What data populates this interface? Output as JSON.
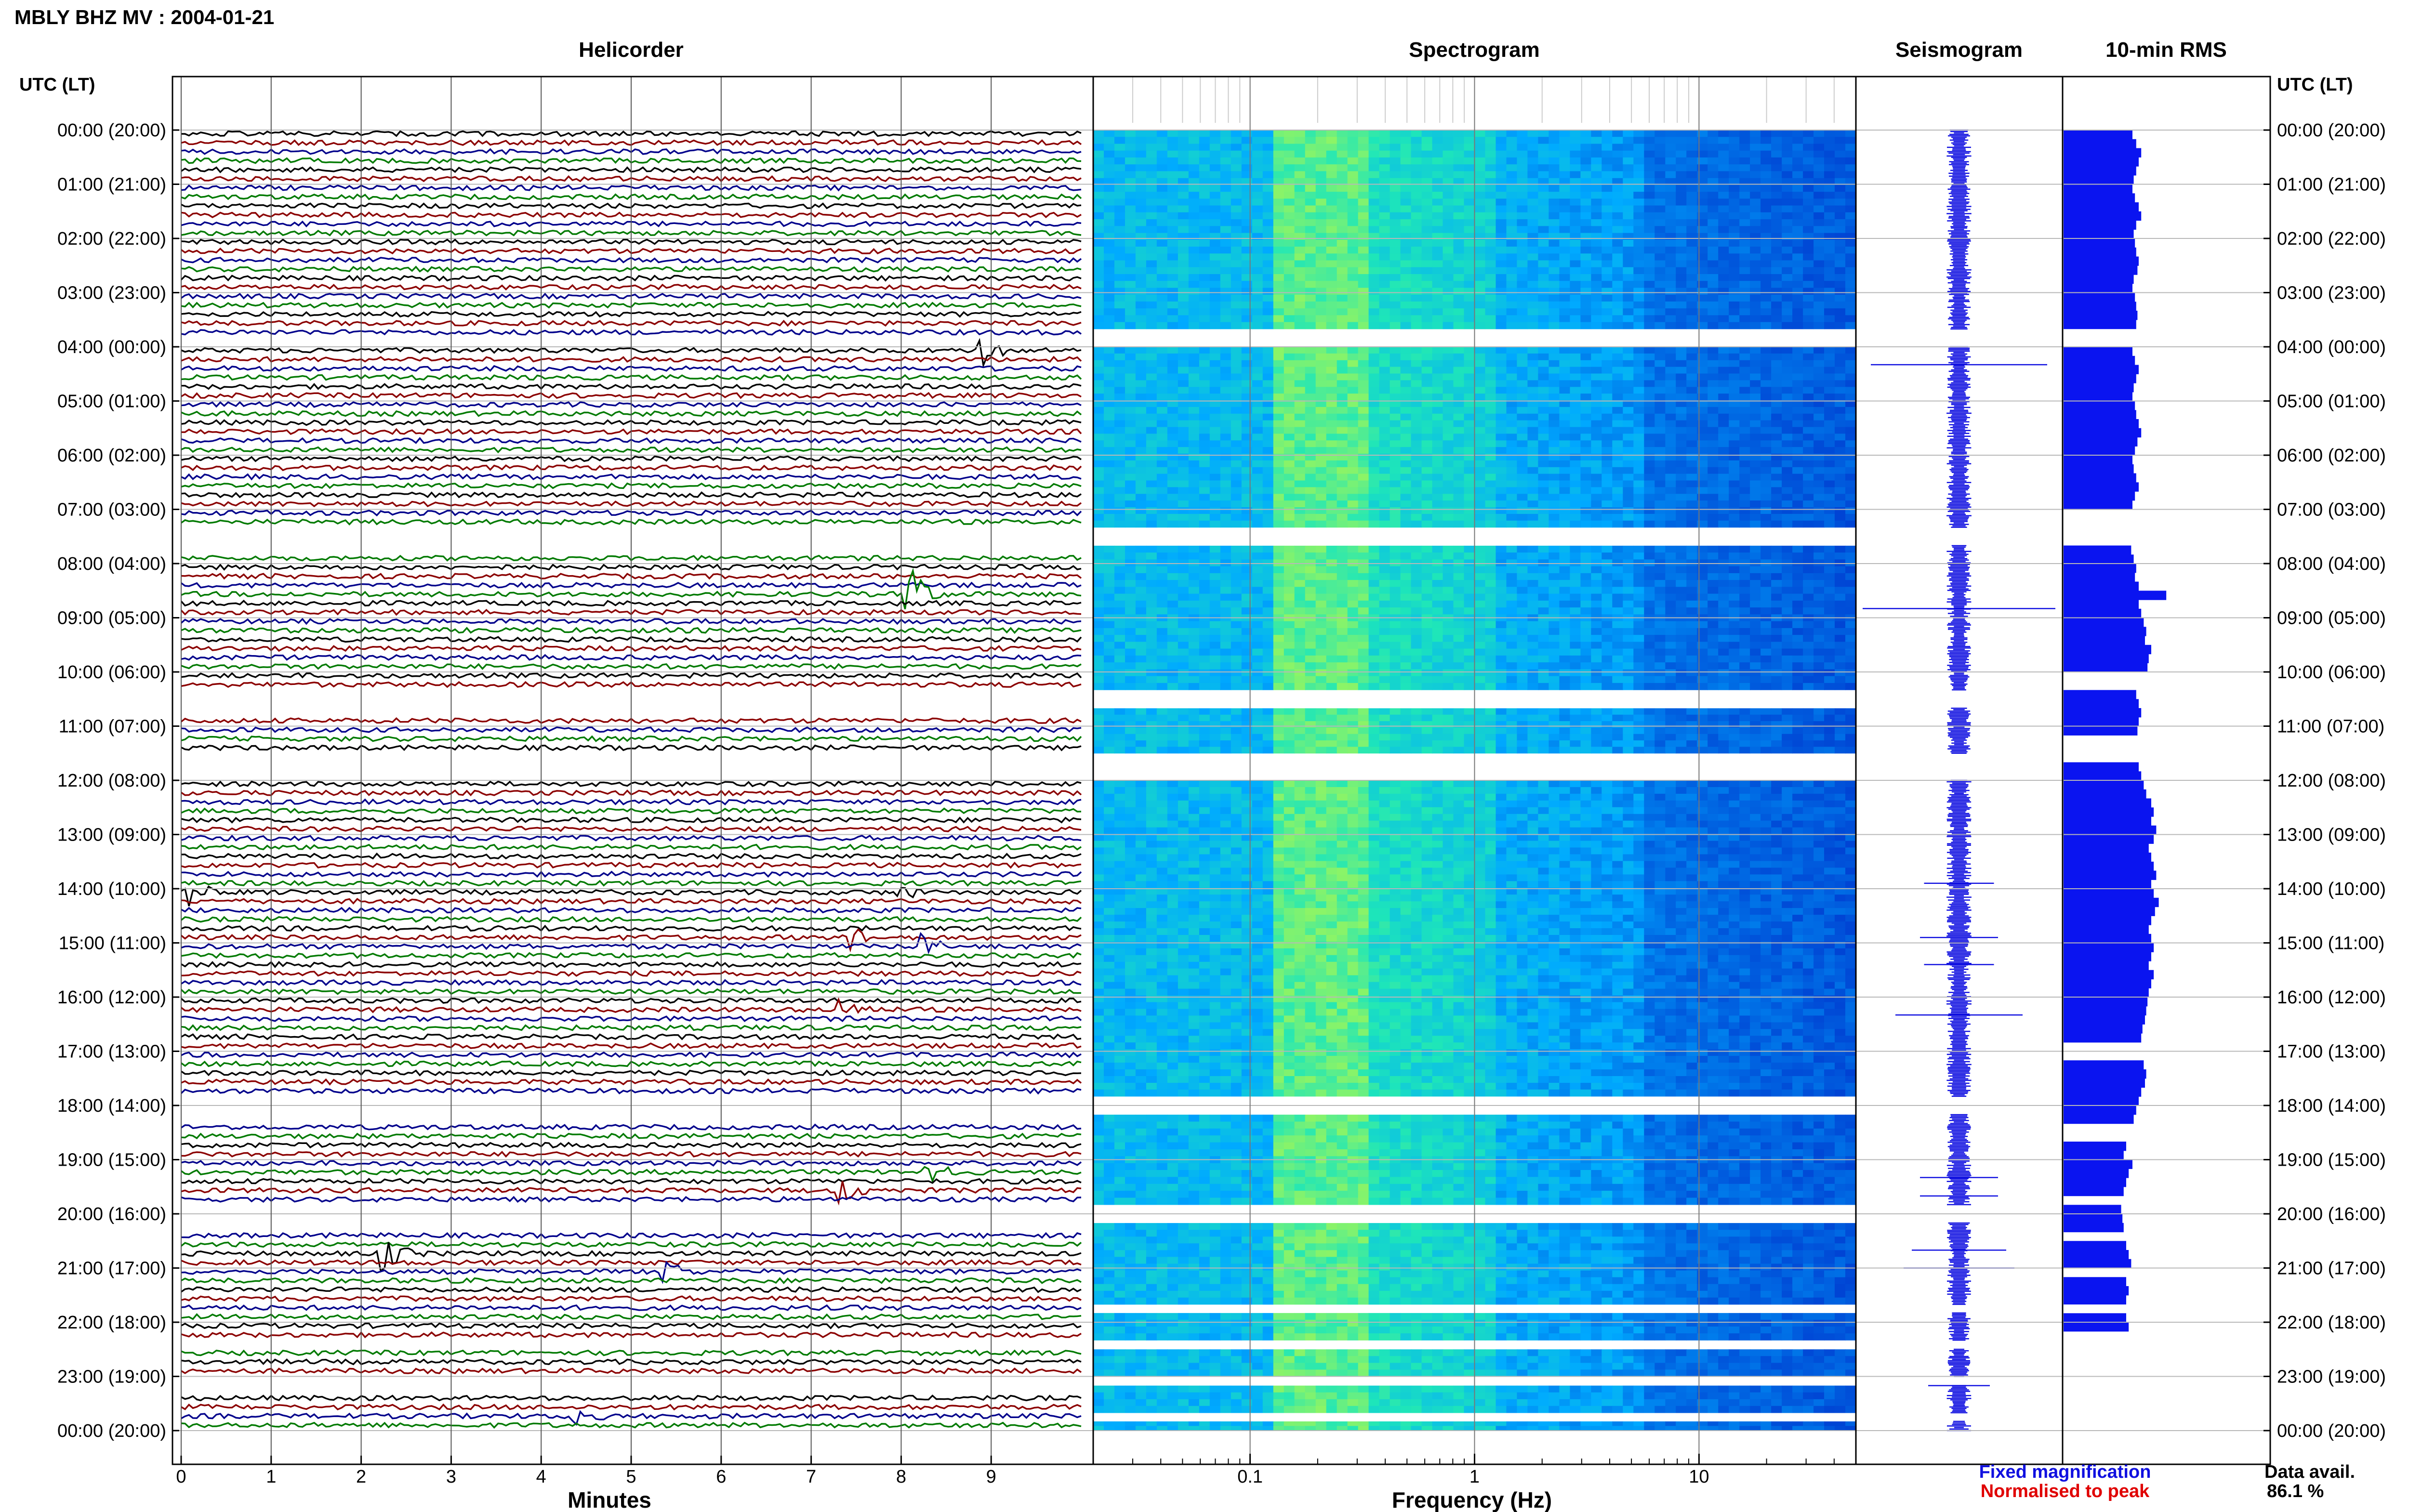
{
  "header": {
    "title": "MBLY BHZ MV : 2004-01-21",
    "utc_label_left": "UTC (LT)",
    "utc_label_right": "UTC (LT)"
  },
  "panels": {
    "helicorder": "Helicorder",
    "spectrogram": "Spectrogram",
    "seismogram": "Seismogram",
    "rms": "10-min RMS"
  },
  "footer": {
    "fixed_magnification": "Fixed magnification",
    "normalised_to_peak": "Normalised to peak",
    "data_avail_label": "Data avail.",
    "data_avail_value": "86.1 %"
  },
  "colors": {
    "helicorder_traces": [
      "#000000",
      "#8b0000",
      "#00008b",
      "#007a00"
    ],
    "seismogram": "#1010e0",
    "rms": "#0a14f0",
    "legend_blue": "#1010e0",
    "legend_red": "#e00000"
  },
  "chart_data": {
    "type": "helicorder-spectrogram",
    "hour_labels": [
      "00:00 (20:00)",
      "01:00 (21:00)",
      "02:00 (22:00)",
      "03:00 (23:00)",
      "04:00 (00:00)",
      "05:00 (01:00)",
      "06:00 (02:00)",
      "07:00 (03:00)",
      "08:00 (04:00)",
      "09:00 (05:00)",
      "10:00 (06:00)",
      "11:00 (07:00)",
      "12:00 (08:00)",
      "13:00 (09:00)",
      "14:00 (10:00)",
      "15:00 (11:00)",
      "16:00 (12:00)",
      "17:00 (13:00)",
      "18:00 (14:00)",
      "19:00 (15:00)",
      "20:00 (16:00)",
      "21:00 (17:00)",
      "22:00 (18:00)",
      "23:00 (19:00)",
      "00:00 (20:00)"
    ],
    "helicorder": {
      "xlabel": "Minutes",
      "xlim": [
        0,
        10
      ],
      "xticks": [
        0,
        1,
        2,
        3,
        4,
        5,
        6,
        7,
        8,
        9
      ],
      "rows_per_hour": 6,
      "data_segments_hours": [
        [
          0.0,
          3.67
        ],
        [
          4.0,
          7.33
        ],
        [
          7.67,
          10.33
        ],
        [
          10.67,
          11.5
        ],
        [
          12.0,
          17.83
        ],
        [
          18.17,
          19.83
        ],
        [
          20.17,
          21.67
        ],
        [
          21.83,
          22.33
        ],
        [
          22.5,
          23.0
        ],
        [
          23.17,
          23.67
        ],
        [
          23.83,
          24.0
        ]
      ],
      "events": [
        {
          "hour": 4.0,
          "minute": 8.9,
          "color_index": 1,
          "size": 1.6
        },
        {
          "hour": 8.5,
          "minute": 8.1,
          "color_index": 3,
          "size": 3.0
        },
        {
          "hour": 14.0,
          "minute": 0.1,
          "color_index": 0,
          "size": 1.6
        },
        {
          "hour": 14.0,
          "minute": 8.0,
          "color_index": 0,
          "size": 1.0
        },
        {
          "hour": 14.8,
          "minute": 7.45,
          "color_index": 1,
          "size": 1.5
        },
        {
          "hour": 15.0,
          "minute": 8.25,
          "color_index": 2,
          "size": 1.5
        },
        {
          "hour": 16.17,
          "minute": 7.35,
          "color_index": 1,
          "size": 1.5
        },
        {
          "hour": 19.17,
          "minute": 8.3,
          "color_index": 3,
          "size": 1.4
        },
        {
          "hour": 19.5,
          "minute": 7.35,
          "color_index": 1,
          "size": 1.6
        },
        {
          "hour": 20.67,
          "minute": 2.25,
          "color_index": 0,
          "size": 2.0
        },
        {
          "hour": 21.0,
          "minute": 5.4,
          "color_index": 2,
          "size": 1.2
        },
        {
          "hour": 23.67,
          "minute": 4.4,
          "color_index": 2,
          "size": 1.0
        }
      ]
    },
    "spectrogram": {
      "xlabel": "Frequency (Hz)",
      "xscale": "log",
      "xlim": [
        0.02,
        50
      ],
      "xticks": [
        0.1,
        1,
        10
      ],
      "xtick_labels": [
        "0.1",
        "1",
        "10"
      ]
    },
    "seismogram": {
      "events": [
        {
          "hour": 4.33,
          "amp": 0.9
        },
        {
          "hour": 8.83,
          "amp": 1.0
        },
        {
          "hour": 13.9,
          "amp": 0.25
        },
        {
          "hour": 14.9,
          "amp": 0.3
        },
        {
          "hour": 15.4,
          "amp": 0.25
        },
        {
          "hour": 16.33,
          "amp": 0.6
        },
        {
          "hour": 19.33,
          "amp": 0.3
        },
        {
          "hour": 19.67,
          "amp": 0.3
        },
        {
          "hour": 20.67,
          "amp": 0.4
        },
        {
          "hour": 21.0,
          "amp": 0.5
        },
        {
          "hour": 23.17,
          "amp": 0.2
        }
      ]
    },
    "rms": {
      "values": [
        0.55,
        0.58,
        0.62,
        0.6,
        0.58,
        0.56,
        0.55,
        0.57,
        0.6,
        0.62,
        0.58,
        0.56,
        0.57,
        0.58,
        0.6,
        0.59,
        0.56,
        0.55,
        0.57,
        0.58,
        0.59,
        0.58,
        null,
        null,
        0.55,
        0.57,
        0.6,
        0.58,
        0.56,
        0.55,
        0.57,
        0.58,
        0.6,
        0.62,
        0.59,
        0.57,
        0.55,
        0.56,
        0.58,
        0.6,
        0.57,
        0.55,
        null,
        null,
        null,
        null,
        0.54,
        0.56,
        0.58,
        0.57,
        0.6,
        0.82,
        0.6,
        0.62,
        0.64,
        0.66,
        0.65,
        0.7,
        0.68,
        0.67,
        null,
        null,
        0.58,
        0.6,
        0.62,
        0.6,
        0.59,
        null,
        null,
        null,
        0.6,
        0.62,
        0.64,
        0.66,
        0.7,
        0.72,
        0.7,
        0.74,
        0.72,
        0.68,
        0.7,
        0.72,
        0.74,
        0.7,
        0.72,
        0.76,
        0.73,
        0.7,
        0.68,
        0.7,
        0.72,
        0.7,
        0.68,
        0.72,
        0.7,
        0.68,
        0.67,
        0.66,
        0.65,
        0.63,
        0.62,
        null,
        null,
        0.64,
        0.66,
        0.65,
        0.62,
        0.6,
        0.58,
        0.56,
        null,
        null,
        0.5,
        0.48,
        0.55,
        0.52,
        0.5,
        0.48,
        null,
        0.46,
        0.47,
        0.48,
        null,
        0.5,
        0.52,
        0.54,
        null,
        0.5,
        0.52,
        0.5,
        null,
        0.5,
        0.52
      ]
    }
  }
}
